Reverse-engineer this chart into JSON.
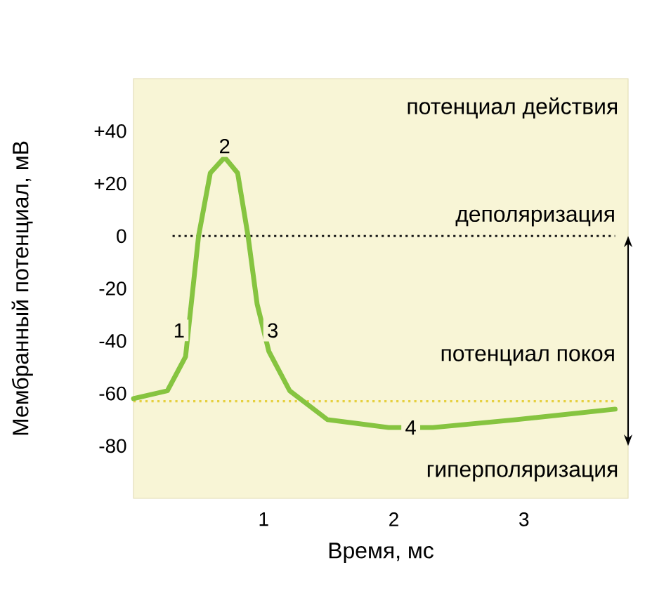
{
  "chart_data": {
    "type": "line",
    "ylabel": "Мембранный потенциал, мВ",
    "xlabel": "Время, мс",
    "x": [
      0,
      0.26,
      0.4,
      0.5,
      0.59,
      0.7,
      0.8,
      0.88,
      0.95,
      1.04,
      1.2,
      1.49,
      1.96,
      2.3,
      2.94,
      3.7
    ],
    "values": [
      -62,
      -59,
      -46,
      0,
      24,
      30,
      24,
      0,
      -26,
      -44,
      -59,
      -70,
      -73,
      -73,
      -70,
      -66
    ],
    "color": "#86c440",
    "xlim": [
      0,
      3.8
    ],
    "ylim": [
      -100,
      60
    ],
    "xticks": [
      1,
      2,
      3
    ],
    "yticks": [
      {
        "value": 40,
        "label": "+40"
      },
      {
        "value": 20,
        "label": "+20"
      },
      0,
      -20,
      -40,
      -60,
      -80
    ],
    "ref_lines": [
      {
        "axis": "y",
        "value": 0,
        "label": "деполяризация",
        "color": "#1a1a1a",
        "line_style": "dotted"
      },
      {
        "axis": "y",
        "value": -63,
        "label": "потенциал покоя",
        "color": "#e6d040",
        "line_style": "dotted"
      }
    ],
    "annotations": [
      "потенциал действия",
      {
        "text": "1",
        "x": 0.35,
        "y": -36
      },
      {
        "text": "2",
        "x": 0.7,
        "y": 30
      },
      {
        "text": "3",
        "x": 1.07,
        "y": -36
      },
      {
        "text": "4",
        "x": 2.13,
        "y": -73
      },
      "гиперполяризация"
    ],
    "grid": false,
    "marker": "none",
    "line_style": "solid"
  }
}
